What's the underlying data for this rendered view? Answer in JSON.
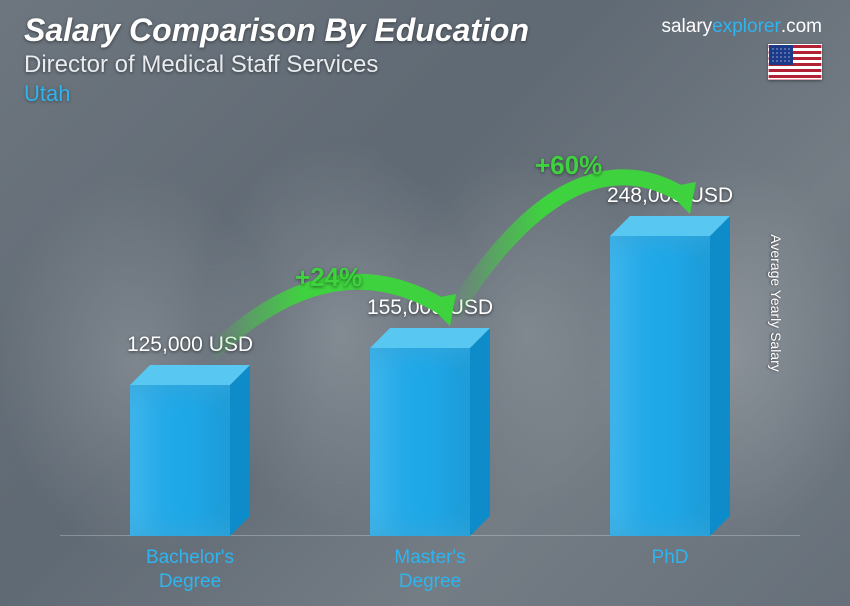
{
  "header": {
    "title": "Salary Comparison By Education",
    "subtitle": "Director of Medical Staff Services",
    "region": "Utah"
  },
  "brand": {
    "prefix": "salary",
    "highlight": "explorer",
    "suffix": ".com",
    "flag_country": "United States"
  },
  "yaxis_label": "Average Yearly Salary",
  "chart": {
    "type": "bar",
    "bar_color": "#1fa8e8",
    "bar_side_color": "#0d8cc9",
    "bar_top_color": "#58c7f2",
    "value_color": "#ffffff",
    "label_color": "#2fb4ef",
    "arc_color": "#3fd23f",
    "arc_stroke_width": 16,
    "value_fontsize": 21,
    "label_fontsize": 19,
    "arc_label_fontsize": 26,
    "max_value": 248000,
    "bars": [
      {
        "label": "Bachelor's\nDegree",
        "value": 125000,
        "value_text": "125,000 USD"
      },
      {
        "label": "Master's\nDegree",
        "value": 155000,
        "value_text": "155,000 USD"
      },
      {
        "label": "PhD",
        "value": 248000,
        "value_text": "248,000 USD"
      }
    ],
    "arcs": [
      {
        "from": 0,
        "to": 1,
        "label": "+24%"
      },
      {
        "from": 1,
        "to": 2,
        "label": "+60%"
      }
    ]
  }
}
